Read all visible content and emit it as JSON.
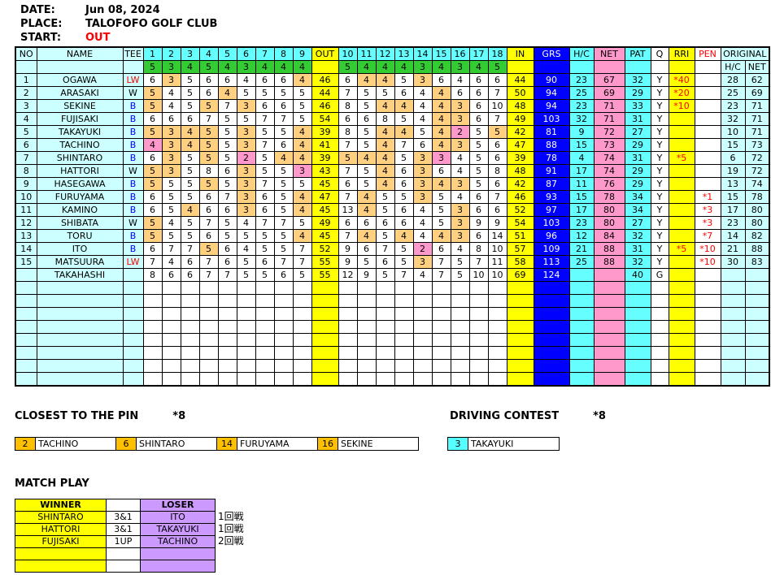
{
  "meta": {
    "date_label": "DATE:",
    "date": "Jun 08, 2024",
    "place_label": "PLACE:",
    "place": "TALOFOFO GOLF CLUB",
    "start_label": "START:",
    "start": "OUT"
  },
  "palette": {
    "pale_cyan": "#CCFFFF",
    "bright_cyan": "#66FFFF",
    "green": "#33CC33",
    "yellow": "#FFFF00",
    "blue": "#0000FF",
    "pink": "#FF99CC",
    "par_highlight": "#FFD080",
    "birdie_highlight": "#FF99CC",
    "orange": "#FFC000",
    "purple": "#CC99FF",
    "red": "#FF0000"
  },
  "scoreboard": {
    "headers": {
      "no": "NO",
      "name": "NAME",
      "tee": "TEE",
      "holes_front": [
        "1",
        "2",
        "3",
        "4",
        "5",
        "6",
        "7",
        "8",
        "9"
      ],
      "out": "OUT",
      "holes_back": [
        "10",
        "11",
        "12",
        "13",
        "14",
        "15",
        "16",
        "17",
        "18"
      ],
      "in": "IN",
      "grs": "GRS",
      "hc": "H/C",
      "net": "NET",
      "pat": "PAT",
      "q": "Q",
      "rri": "RRI",
      "pen": "PEN",
      "original": "ORIGINAL",
      "orig_hc": "H/C",
      "orig_net": "NET"
    },
    "par_front": [
      5,
      3,
      4,
      5,
      4,
      3,
      4,
      4,
      4
    ],
    "par_back": [
      5,
      4,
      4,
      4,
      3,
      4,
      3,
      4,
      5
    ],
    "rows": [
      {
        "no": "1",
        "name": "OGAWA",
        "tee": "LW",
        "front": [
          6,
          3,
          5,
          6,
          6,
          4,
          6,
          6,
          4
        ],
        "out": 46,
        "back": [
          6,
          4,
          4,
          5,
          3,
          6,
          4,
          6,
          6
        ],
        "in": 44,
        "grs": 90,
        "hc": 23,
        "net": 67,
        "pat": 32,
        "q": "Y",
        "rri": "*40",
        "pen": "",
        "ohc": "28",
        "onet": "62"
      },
      {
        "no": "2",
        "name": "ARASAKI",
        "tee": "W",
        "front": [
          5,
          4,
          5,
          6,
          4,
          5,
          5,
          5,
          5
        ],
        "out": 44,
        "back": [
          7,
          5,
          5,
          6,
          4,
          4,
          6,
          6,
          7
        ],
        "in": 50,
        "grs": 94,
        "hc": 25,
        "net": 69,
        "pat": 29,
        "q": "Y",
        "rri": "*20",
        "pen": "",
        "ohc": "25",
        "onet": "69"
      },
      {
        "no": "3",
        "name": "SEKINE",
        "tee": "B",
        "front": [
          5,
          4,
          5,
          5,
          7,
          3,
          6,
          6,
          5
        ],
        "out": 46,
        "back": [
          8,
          5,
          4,
          4,
          4,
          4,
          3,
          6,
          10
        ],
        "in": 48,
        "grs": 94,
        "hc": 23,
        "net": 71,
        "pat": 33,
        "q": "Y",
        "rri": "*10",
        "pen": "",
        "ohc": "23",
        "onet": "71"
      },
      {
        "no": "4",
        "name": "FUJISAKI",
        "tee": "B",
        "front": [
          6,
          6,
          6,
          7,
          5,
          5,
          7,
          7,
          5
        ],
        "out": 54,
        "back": [
          6,
          6,
          8,
          5,
          4,
          4,
          3,
          6,
          7
        ],
        "in": 49,
        "grs": 103,
        "hc": 32,
        "net": 71,
        "pat": 31,
        "q": "Y",
        "rri": "",
        "pen": "",
        "ohc": "32",
        "onet": "71"
      },
      {
        "no": "5",
        "name": "TAKAYUKI",
        "tee": "B",
        "front": [
          5,
          3,
          4,
          5,
          5,
          3,
          5,
          5,
          4
        ],
        "out": 39,
        "back": [
          8,
          5,
          4,
          4,
          5,
          4,
          2,
          5,
          5
        ],
        "in": 42,
        "grs": 81,
        "hc": 9,
        "net": 72,
        "pat": 27,
        "q": "Y",
        "rri": "",
        "pen": "",
        "ohc": "10",
        "onet": "71"
      },
      {
        "no": "6",
        "name": "TACHINO",
        "tee": "B",
        "front": [
          4,
          3,
          4,
          5,
          5,
          3,
          7,
          6,
          4
        ],
        "out": 41,
        "back": [
          7,
          5,
          4,
          7,
          6,
          4,
          3,
          5,
          6
        ],
        "in": 47,
        "grs": 88,
        "hc": 15,
        "net": 73,
        "pat": 29,
        "q": "Y",
        "rri": "",
        "pen": "",
        "ohc": "15",
        "onet": "73"
      },
      {
        "no": "7",
        "name": "SHINTARO",
        "tee": "B",
        "front": [
          6,
          3,
          5,
          5,
          5,
          2,
          5,
          4,
          4
        ],
        "out": 39,
        "back": [
          5,
          4,
          4,
          5,
          3,
          3,
          4,
          5,
          6
        ],
        "in": 39,
        "grs": 78,
        "hc": 4,
        "net": 74,
        "pat": 31,
        "q": "Y",
        "rri": "*5",
        "pen": "",
        "ohc": "6",
        "onet": "72"
      },
      {
        "no": "8",
        "name": "HATTORI",
        "tee": "W",
        "front": [
          5,
          3,
          5,
          8,
          6,
          3,
          5,
          5,
          3
        ],
        "out": 43,
        "back": [
          7,
          5,
          4,
          6,
          3,
          6,
          4,
          5,
          8
        ],
        "in": 48,
        "grs": 91,
        "hc": 17,
        "net": 74,
        "pat": 29,
        "q": "Y",
        "rri": "",
        "pen": "",
        "ohc": "19",
        "onet": "72"
      },
      {
        "no": "9",
        "name": "HASEGAWA",
        "tee": "B",
        "front": [
          5,
          5,
          5,
          5,
          5,
          3,
          7,
          5,
          5
        ],
        "out": 45,
        "back": [
          6,
          5,
          4,
          6,
          3,
          4,
          3,
          5,
          6
        ],
        "in": 42,
        "grs": 87,
        "hc": 11,
        "net": 76,
        "pat": 29,
        "q": "Y",
        "rri": "",
        "pen": "",
        "ohc": "13",
        "onet": "74"
      },
      {
        "no": "10",
        "name": "FURUYAMA",
        "tee": "B",
        "front": [
          6,
          5,
          5,
          6,
          7,
          3,
          6,
          5,
          4
        ],
        "out": 47,
        "back": [
          7,
          4,
          5,
          5,
          3,
          5,
          4,
          6,
          7
        ],
        "in": 46,
        "grs": 93,
        "hc": 15,
        "net": 78,
        "pat": 34,
        "q": "Y",
        "rri": "",
        "pen": "*1",
        "ohc": "15",
        "onet": "78"
      },
      {
        "no": "11",
        "name": "KAMINO",
        "tee": "B",
        "front": [
          6,
          5,
          4,
          6,
          6,
          3,
          6,
          5,
          4
        ],
        "out": 45,
        "back": [
          13,
          4,
          5,
          6,
          4,
          5,
          3,
          6,
          6
        ],
        "in": 52,
        "grs": 97,
        "hc": 17,
        "net": 80,
        "pat": 34,
        "q": "Y",
        "rri": "",
        "pen": "*3",
        "ohc": "17",
        "onet": "80"
      },
      {
        "no": "12",
        "name": "SHIBATA",
        "tee": "W",
        "front": [
          5,
          4,
          5,
          7,
          5,
          4,
          7,
          7,
          5
        ],
        "out": 49,
        "back": [
          6,
          6,
          6,
          6,
          4,
          5,
          3,
          9,
          9
        ],
        "in": 54,
        "grs": 103,
        "hc": 23,
        "net": 80,
        "pat": 27,
        "q": "Y",
        "rri": "",
        "pen": "*3",
        "ohc": "23",
        "onet": "80"
      },
      {
        "no": "13",
        "name": "TORU",
        "tee": "B",
        "front": [
          5,
          5,
          5,
          6,
          5,
          5,
          5,
          5,
          4
        ],
        "out": 45,
        "back": [
          7,
          4,
          5,
          4,
          4,
          4,
          3,
          6,
          14
        ],
        "in": 51,
        "grs": 96,
        "hc": 12,
        "net": 84,
        "pat": 32,
        "q": "Y",
        "rri": "",
        "pen": "*7",
        "ohc": "14",
        "onet": "82"
      },
      {
        "no": "14",
        "name": "ITO",
        "tee": "B",
        "front": [
          6,
          7,
          7,
          5,
          6,
          4,
          5,
          5,
          7
        ],
        "out": 52,
        "back": [
          9,
          6,
          7,
          5,
          2,
          6,
          4,
          8,
          10
        ],
        "in": 57,
        "grs": 109,
        "hc": 21,
        "net": 88,
        "pat": 31,
        "q": "Y",
        "rri": "*5",
        "pen": "*10",
        "ohc": "21",
        "onet": "88"
      },
      {
        "no": "15",
        "name": "MATSUURA",
        "tee": "LW",
        "front": [
          7,
          4,
          6,
          7,
          6,
          5,
          6,
          7,
          7
        ],
        "out": 55,
        "back": [
          9,
          5,
          6,
          5,
          3,
          7,
          5,
          7,
          11
        ],
        "in": 58,
        "grs": 113,
        "hc": 25,
        "net": 88,
        "pat": 32,
        "q": "Y",
        "rri": "",
        "pen": "*10",
        "ohc": "30",
        "onet": "83"
      },
      {
        "no": "",
        "name": "TAKAHASHI",
        "tee": "",
        "front": [
          8,
          6,
          6,
          7,
          7,
          5,
          5,
          6,
          5
        ],
        "out": 55,
        "back": [
          12,
          9,
          5,
          7,
          4,
          7,
          5,
          10,
          10
        ],
        "in": 69,
        "grs": 124,
        "hc": "",
        "net": "",
        "pat": 40,
        "q": "G",
        "rri": "",
        "pen": "",
        "ohc": "",
        "onet": ""
      }
    ],
    "empty_rows": 8
  },
  "closest_to_pin": {
    "title": "CLOSEST TO THE PIN",
    "note": "*8",
    "entries": [
      {
        "hole": "2",
        "name": "TACHINO"
      },
      {
        "hole": "6",
        "name": "SHINTARO"
      },
      {
        "hole": "14",
        "name": "FURUYAMA"
      },
      {
        "hole": "16",
        "name": "SEKINE"
      }
    ]
  },
  "driving_contest": {
    "title": "DRIVING CONTEST",
    "note": "*8",
    "entries": [
      {
        "hole": "3",
        "name": "TAKAYUKI"
      }
    ]
  },
  "match_play": {
    "title": "MATCH PLAY",
    "headers": {
      "winner": "WINNER",
      "loser": "LOSER"
    },
    "matches": [
      {
        "winner": "SHINTARO",
        "result": "3&1",
        "loser": "ITO",
        "round": "1回戦"
      },
      {
        "winner": "HATTORI",
        "result": "3&1",
        "loser": "TAKAYUKI",
        "round": "1回戦"
      },
      {
        "winner": "FUJISAKI",
        "result": "1UP",
        "loser": "TACHINO",
        "round": "2回戦"
      }
    ],
    "empty_rows": 2
  }
}
